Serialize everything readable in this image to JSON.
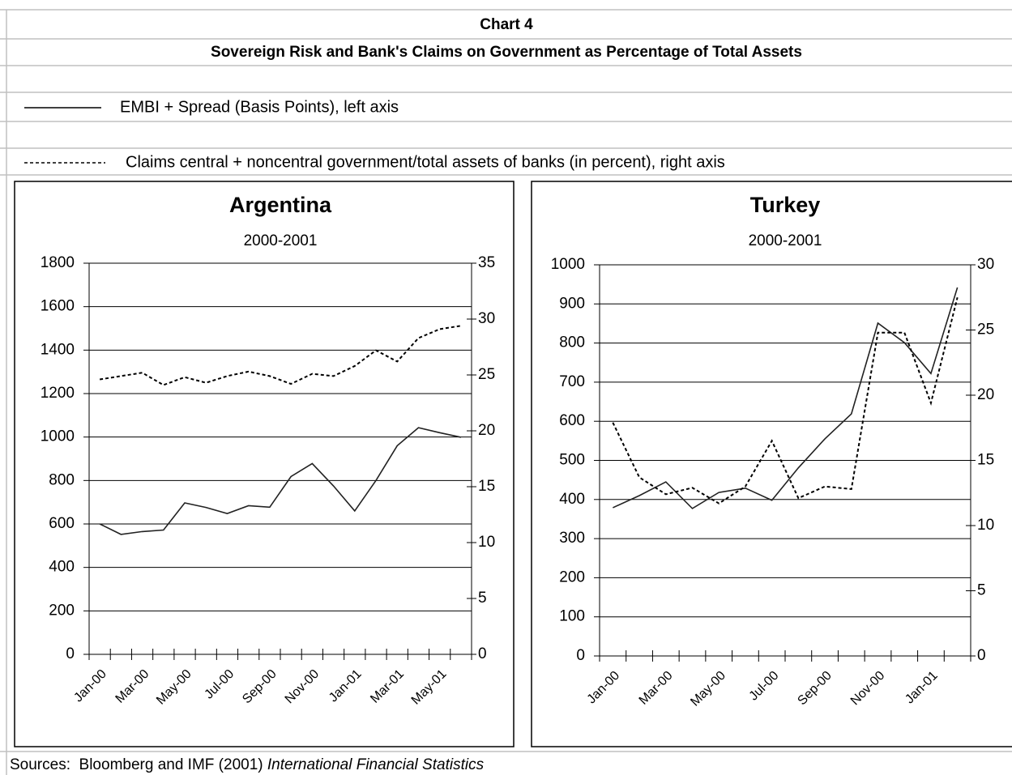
{
  "header": {
    "title": "Chart 4",
    "subtitle": "Sovereign Risk and Bank's Claims on Government as Percentage of Total Assets"
  },
  "legend": [
    "EMBI + Spread (Basis Points), left axis",
    "Claims central + noncentral government/total assets of banks (in percent), right axis"
  ],
  "footer": {
    "text": "Sources:  Bloomberg and IMF (2001) ",
    "italic": "International Financial Statistics"
  },
  "chart_data": [
    {
      "type": "line",
      "title": "Argentina",
      "subtitle": "2000-2001",
      "categories": [
        "Jan-00",
        null,
        "Mar-00",
        null,
        "May-00",
        null,
        "Jul-00",
        null,
        "Sep-00",
        null,
        "Nov-00",
        null,
        "Jan-01",
        null,
        "Mar-01",
        null,
        "May-01",
        null
      ],
      "series": [
        {
          "color": "#222222",
          "dash": false,
          "axis": "y",
          "values": [
            600,
            552,
            565,
            572,
            697,
            676,
            648,
            684,
            677,
            818,
            878,
            775,
            660,
            800,
            960,
            1043,
            1020,
            999
          ]
        },
        {
          "color": "#000000",
          "dash": true,
          "axis": "y2",
          "values": [
            24.6,
            24.9,
            25.2,
            24.1,
            24.8,
            24.3,
            24.9,
            25.3,
            24.9,
            24.2,
            25.1,
            24.9,
            25.8,
            27.2,
            26.2,
            28.3,
            29.1,
            29.4
          ]
        }
      ],
      "ylim": [
        0,
        1800
      ],
      "yticks": [
        0,
        200,
        400,
        600,
        800,
        1000,
        1200,
        1400,
        1600,
        1800
      ],
      "y2lim": [
        0,
        35
      ],
      "y2ticks": [
        0,
        5,
        10,
        15,
        20,
        25,
        30,
        35
      ],
      "grid": true
    },
    {
      "type": "line",
      "title": "Turkey",
      "subtitle": "2000-2001",
      "categories": [
        "Jan-00",
        null,
        "Mar-00",
        null,
        "May-00",
        null,
        "Jul-00",
        null,
        "Sep-00",
        null,
        "Nov-00",
        null,
        "Jan-01",
        null
      ],
      "series": [
        {
          "color": "#222222",
          "dash": false,
          "axis": "y",
          "values": [
            379,
            410,
            445,
            377,
            418,
            429,
            398,
            481,
            555,
            619,
            851,
            801,
            722,
            942
          ]
        },
        {
          "color": "#000000",
          "dash": true,
          "axis": "y2",
          "values": [
            17.9,
            13.7,
            12.4,
            12.9,
            11.7,
            13.0,
            16.5,
            12.1,
            13.0,
            12.8,
            24.8,
            24.8,
            19.4,
            27.5
          ]
        }
      ],
      "ylim": [
        0,
        1000
      ],
      "yticks": [
        0,
        100,
        200,
        300,
        400,
        500,
        600,
        700,
        800,
        900,
        1000
      ],
      "y2lim": [
        0,
        30
      ],
      "y2ticks": [
        0,
        5,
        10,
        15,
        20,
        25,
        30
      ],
      "grid": true
    }
  ]
}
